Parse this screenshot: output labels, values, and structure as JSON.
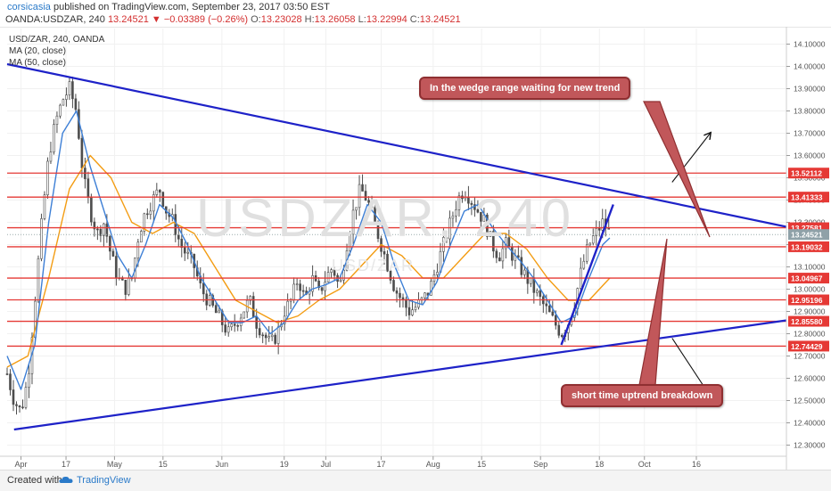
{
  "header": {
    "author": "corsicasia",
    "published": "published on TradingView.com, September 23, 2017 03:50 EST",
    "symbol": "OANDA:USDZAR, 240",
    "last": "13.24521",
    "change": "▼ −0.03389 (−0.26%)",
    "o_label": "O:",
    "o_val": "13.23028",
    "h_label": "H:",
    "h_val": "13.26058",
    "l_label": "L:",
    "l_val": "13.22994",
    "c_label": "C:",
    "c_val": "13.24521"
  },
  "legend": {
    "symbol": "USD/ZAR, 240, OANDA",
    "ma20": "MA (20, close)",
    "ma50": "MA (50, close)"
  },
  "watermark": {
    "main": "USDZAR, 240",
    "sub": "USD/ZAR"
  },
  "annotations": {
    "top": "In the wedge range waiting for new trend",
    "bottom": "short time uptrend breakdown"
  },
  "footer": {
    "created": "Created with",
    "brand": "TradingView"
  },
  "chart_data": {
    "type": "candlestick",
    "y_axis": {
      "ticks": [
        "14.10000",
        "14.00000",
        "13.90000",
        "13.80000",
        "13.70000",
        "13.60000",
        "13.50000",
        "13.40000",
        "13.30000",
        "13.20000",
        "13.10000",
        "13.00000",
        "12.90000",
        "12.80000",
        "12.70000",
        "12.60000",
        "12.50000",
        "12.40000",
        "12.30000"
      ],
      "ylim": [
        12.25,
        14.17
      ]
    },
    "x_axis": {
      "ticks": [
        {
          "label": "Apr",
          "day": 4
        },
        {
          "label": "17",
          "day": 17
        },
        {
          "label": "May",
          "day": 31
        },
        {
          "label": "15",
          "day": 45
        },
        {
          "label": "Jun",
          "day": 62
        },
        {
          "label": "19",
          "day": 80
        },
        {
          "label": "Jul",
          "day": 92
        },
        {
          "label": "17",
          "day": 108
        },
        {
          "label": "Aug",
          "day": 123
        },
        {
          "label": "15",
          "day": 137
        },
        {
          "label": "Sep",
          "day": 154
        },
        {
          "label": "18",
          "day": 171
        },
        {
          "label": "Oct",
          "day": 184
        },
        {
          "label": "16",
          "day": 199
        }
      ],
      "xlim": [
        0,
        225
      ]
    },
    "horizontal_levels": [
      "13.52112",
      "13.41333",
      "13.27581",
      "13.19032",
      "13.04967",
      "12.95196",
      "12.85580",
      "12.74429"
    ],
    "current_price": "13.24521",
    "close_path": [
      [
        0,
        12.62
      ],
      [
        2,
        12.5
      ],
      [
        4,
        12.45
      ],
      [
        6,
        12.6
      ],
      [
        8,
        12.95
      ],
      [
        10,
        13.3
      ],
      [
        12,
        13.6
      ],
      [
        14,
        13.75
      ],
      [
        16,
        13.85
      ],
      [
        18,
        13.9
      ],
      [
        20,
        13.8
      ],
      [
        22,
        13.5
      ],
      [
        24,
        13.35
      ],
      [
        26,
        13.25
      ],
      [
        28,
        13.3
      ],
      [
        30,
        13.15
      ],
      [
        32,
        13.05
      ],
      [
        34,
        13.0
      ],
      [
        36,
        13.05
      ],
      [
        38,
        13.25
      ],
      [
        40,
        13.35
      ],
      [
        42,
        13.4
      ],
      [
        44,
        13.45
      ],
      [
        46,
        13.35
      ],
      [
        48,
        13.3
      ],
      [
        50,
        13.2
      ],
      [
        52,
        13.15
      ],
      [
        54,
        13.1
      ],
      [
        56,
        13.0
      ],
      [
        58,
        12.95
      ],
      [
        60,
        12.9
      ],
      [
        62,
        12.85
      ],
      [
        64,
        12.8
      ],
      [
        66,
        12.85
      ],
      [
        68,
        12.9
      ],
      [
        70,
        12.95
      ],
      [
        72,
        12.85
      ],
      [
        74,
        12.8
      ],
      [
        76,
        12.75
      ],
      [
        78,
        12.8
      ],
      [
        80,
        12.9
      ],
      [
        82,
        12.95
      ],
      [
        84,
        13.05
      ],
      [
        86,
        12.95
      ],
      [
        88,
        13.05
      ],
      [
        90,
        12.98
      ],
      [
        92,
        13.05
      ],
      [
        94,
        13.1
      ],
      [
        96,
        13.0
      ],
      [
        98,
        13.2
      ],
      [
        100,
        13.35
      ],
      [
        102,
        13.45
      ],
      [
        104,
        13.4
      ],
      [
        106,
        13.3
      ],
      [
        108,
        13.2
      ],
      [
        110,
        13.1
      ],
      [
        112,
        13.0
      ],
      [
        114,
        12.95
      ],
      [
        116,
        12.9
      ],
      [
        118,
        12.92
      ],
      [
        120,
        12.95
      ],
      [
        122,
        13.0
      ],
      [
        124,
        13.1
      ],
      [
        126,
        13.2
      ],
      [
        128,
        13.3
      ],
      [
        130,
        13.4
      ],
      [
        132,
        13.45
      ],
      [
        134,
        13.4
      ],
      [
        136,
        13.35
      ],
      [
        138,
        13.3
      ],
      [
        140,
        13.2
      ],
      [
        142,
        13.15
      ],
      [
        144,
        13.2
      ],
      [
        146,
        13.15
      ],
      [
        148,
        13.1
      ],
      [
        150,
        13.05
      ],
      [
        152,
        13.0
      ],
      [
        154,
        12.95
      ],
      [
        156,
        12.9
      ],
      [
        158,
        12.85
      ],
      [
        160,
        12.8
      ],
      [
        162,
        12.85
      ],
      [
        164,
        12.95
      ],
      [
        166,
        13.1
      ],
      [
        168,
        13.2
      ],
      [
        170,
        13.25
      ],
      [
        172,
        13.3
      ],
      [
        174,
        13.25
      ]
    ],
    "ma20_path": [
      [
        0,
        12.7
      ],
      [
        4,
        12.55
      ],
      [
        8,
        12.75
      ],
      [
        12,
        13.3
      ],
      [
        16,
        13.7
      ],
      [
        20,
        13.8
      ],
      [
        24,
        13.55
      ],
      [
        28,
        13.35
      ],
      [
        32,
        13.15
      ],
      [
        36,
        13.05
      ],
      [
        40,
        13.2
      ],
      [
        44,
        13.38
      ],
      [
        48,
        13.32
      ],
      [
        52,
        13.2
      ],
      [
        56,
        13.05
      ],
      [
        60,
        12.95
      ],
      [
        64,
        12.85
      ],
      [
        68,
        12.85
      ],
      [
        72,
        12.88
      ],
      [
        76,
        12.8
      ],
      [
        80,
        12.85
      ],
      [
        84,
        12.95
      ],
      [
        88,
        13.0
      ],
      [
        92,
        13.02
      ],
      [
        96,
        13.05
      ],
      [
        100,
        13.2
      ],
      [
        104,
        13.38
      ],
      [
        108,
        13.3
      ],
      [
        112,
        13.1
      ],
      [
        116,
        12.95
      ],
      [
        120,
        12.93
      ],
      [
        124,
        13.03
      ],
      [
        128,
        13.2
      ],
      [
        132,
        13.35
      ],
      [
        136,
        13.38
      ],
      [
        140,
        13.28
      ],
      [
        144,
        13.2
      ],
      [
        148,
        13.13
      ],
      [
        152,
        13.05
      ],
      [
        156,
        12.95
      ],
      [
        160,
        12.85
      ],
      [
        164,
        12.88
      ],
      [
        168,
        13.05
      ],
      [
        172,
        13.2
      ],
      [
        174,
        13.23
      ]
    ],
    "ma50_path": [
      [
        0,
        12.65
      ],
      [
        6,
        12.7
      ],
      [
        12,
        13.05
      ],
      [
        18,
        13.45
      ],
      [
        24,
        13.6
      ],
      [
        30,
        13.5
      ],
      [
        36,
        13.3
      ],
      [
        42,
        13.25
      ],
      [
        48,
        13.3
      ],
      [
        54,
        13.25
      ],
      [
        60,
        13.1
      ],
      [
        66,
        12.95
      ],
      [
        72,
        12.9
      ],
      [
        78,
        12.85
      ],
      [
        84,
        12.88
      ],
      [
        90,
        12.95
      ],
      [
        96,
        13.0
      ],
      [
        102,
        13.1
      ],
      [
        108,
        13.2
      ],
      [
        114,
        13.15
      ],
      [
        120,
        13.05
      ],
      [
        126,
        13.05
      ],
      [
        132,
        13.15
      ],
      [
        138,
        13.25
      ],
      [
        144,
        13.25
      ],
      [
        150,
        13.18
      ],
      [
        156,
        13.05
      ],
      [
        162,
        12.95
      ],
      [
        168,
        12.95
      ],
      [
        174,
        13.05
      ]
    ],
    "trendlines": {
      "upper_wedge": [
        [
          0,
          14.01
        ],
        [
          225,
          13.28
        ]
      ],
      "lower_wedge": [
        [
          2,
          12.37
        ],
        [
          225,
          12.86
        ]
      ],
      "short_uptrend": [
        [
          160,
          12.75
        ],
        [
          175,
          13.38
        ]
      ]
    },
    "projection_arrows": {
      "up": [
        [
          192,
          13.48
        ],
        [
          203,
          13.7
        ]
      ],
      "down": [
        [
          192,
          12.78
        ],
        [
          203,
          12.52
        ]
      ]
    },
    "colors": {
      "candle": "#4d4d4d",
      "ma20": "#3d7fd6",
      "ma50": "#f39c12",
      "levels": "#e53935",
      "trend": "#1e22c8",
      "annotation": "#c1575a",
      "axis_label_bg": "#e53935",
      "current_price_bg": "#8fa1a8"
    }
  }
}
